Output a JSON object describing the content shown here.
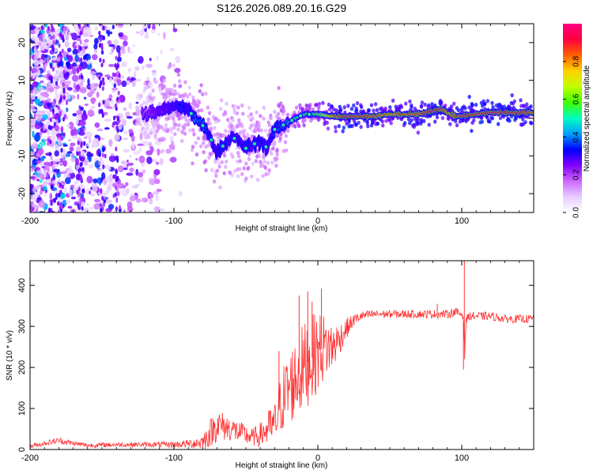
{
  "title": "S126.2026.089.20.16.G29",
  "chart_data": [
    {
      "type": "heatmap",
      "xlabel": "Height of straight line (km)",
      "ylabel": "Frequency (Hz)",
      "xlim": [
        -200,
        150
      ],
      "ylim": [
        -25,
        25
      ],
      "xticks": [
        -200,
        -100,
        0,
        100
      ],
      "yticks": [
        -20,
        -10,
        0,
        10,
        20
      ],
      "colorbar": {
        "label": "Normalized spectral amplitude",
        "range": [
          0,
          1
        ],
        "ticks": [
          0.0,
          0.2,
          0.4,
          0.6,
          0.8
        ],
        "colormap": [
          "#ffffff",
          "#e6ccff",
          "#cc66ff",
          "#8000ff",
          "#0000ff",
          "#00a0ff",
          "#00ffc0",
          "#40ff00",
          "#c0ff00",
          "#ffd000",
          "#ff6000",
          "#ff0040",
          "#ff0080"
        ]
      },
      "ridge": {
        "x": [
          -120,
          -110,
          -100,
          -95,
          -90,
          -85,
          -80,
          -75,
          -70,
          -65,
          -60,
          -55,
          -50,
          -45,
          -40,
          -35,
          -30,
          -25,
          -20,
          -15,
          -10,
          -5,
          0,
          10,
          20,
          30,
          40,
          50,
          60,
          70,
          80,
          85,
          90,
          95,
          100,
          110,
          120,
          130,
          140,
          150
        ],
        "frequency": [
          1,
          2,
          3,
          3,
          2,
          0,
          -2,
          -5,
          -9,
          -7,
          -5,
          -6,
          -8,
          -7,
          -6,
          -8,
          -3,
          -2,
          -1,
          0,
          1,
          1,
          1,
          0.5,
          0.5,
          0.5,
          0.5,
          1,
          1,
          1,
          2,
          2.5,
          1.5,
          0.5,
          0.5,
          1,
          1.5,
          1.5,
          1.5,
          1.5
        ],
        "amplitude": [
          0.2,
          0.25,
          0.3,
          0.35,
          0.3,
          0.4,
          0.4,
          0.35,
          0.3,
          0.35,
          0.3,
          0.3,
          0.35,
          0.3,
          0.35,
          0.3,
          0.35,
          0.4,
          0.45,
          0.55,
          0.6,
          0.5,
          0.6,
          0.8,
          0.95,
          0.9,
          0.85,
          0.8,
          0.85,
          0.85,
          0.95,
          0.9,
          0.8,
          0.85,
          0.95,
          0.9,
          0.95,
          0.95,
          0.9,
          0.85
        ]
      }
    },
    {
      "type": "line",
      "xlabel": "Height of straight line (km)",
      "ylabel": "SNR (10 * v/v)",
      "xlim": [
        -200,
        150
      ],
      "ylim": [
        0,
        460
      ],
      "xticks": [
        -200,
        -100,
        0,
        100
      ],
      "yticks": [
        0,
        100,
        200,
        300,
        400
      ],
      "color": "#ff3030",
      "envelope": {
        "x": [
          -200,
          -190,
          -180,
          -170,
          -160,
          -140,
          -120,
          -100,
          -90,
          -80,
          -75,
          -70,
          -60,
          -50,
          -45,
          -40,
          -35,
          -30,
          -25,
          -20,
          -15,
          -10,
          -5,
          0,
          5,
          10,
          15,
          20,
          25,
          30,
          40,
          50,
          60,
          70,
          80,
          90,
          95,
          100,
          101,
          102,
          103,
          105,
          110,
          120,
          130,
          140,
          150
        ],
        "mean": [
          8,
          15,
          22,
          15,
          10,
          12,
          12,
          12,
          14,
          18,
          40,
          60,
          50,
          35,
          30,
          35,
          50,
          60,
          120,
          150,
          175,
          200,
          220,
          240,
          250,
          250,
          270,
          295,
          315,
          325,
          330,
          330,
          330,
          330,
          330,
          330,
          335,
          330,
          325,
          250,
          315,
          325,
          325,
          325,
          318,
          318,
          318
        ],
        "noise": [
          6,
          6,
          8,
          6,
          6,
          6,
          6,
          8,
          10,
          20,
          35,
          40,
          30,
          25,
          22,
          30,
          45,
          55,
          80,
          95,
          100,
          110,
          105,
          100,
          80,
          60,
          40,
          25,
          15,
          12,
          10,
          10,
          10,
          10,
          10,
          10,
          12,
          10,
          10,
          60,
          10,
          10,
          10,
          10,
          10,
          10,
          10
        ]
      },
      "spikes": [
        {
          "x": 101.8,
          "y": 460
        },
        {
          "x": 101.2,
          "y": 195
        },
        {
          "x": 2.5,
          "y": 392
        },
        {
          "x": -13,
          "y": 375
        },
        {
          "x": -7,
          "y": 385
        },
        {
          "x": -4,
          "y": 360
        },
        {
          "x": -27,
          "y": 240
        },
        {
          "x": 83,
          "y": 355
        }
      ]
    }
  ]
}
